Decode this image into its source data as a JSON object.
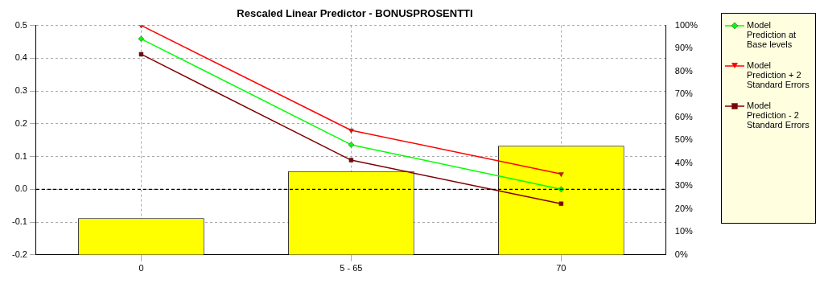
{
  "chart_data": {
    "type": "line",
    "title": "Rescaled Linear Predictor - BONUSPROSENTTI",
    "categories": [
      "0",
      "5 - 65",
      "70"
    ],
    "series": [
      {
        "type": "bar",
        "axis": "y2",
        "color": "#ffff00",
        "values": [
          16,
          36.5,
          47.5
        ]
      },
      {
        "name": "Model Prediction at Base levels",
        "color": "#00ff00",
        "marker": "diamond",
        "values": [
          0.459,
          0.136,
          0.0
        ]
      },
      {
        "name": "Model Prediction + 2 Standard Errors",
        "color": "#ff0000",
        "marker": "triangle",
        "values": [
          0.5,
          0.18,
          0.047
        ]
      },
      {
        "name": "Model Prediction - 2 Standard Errors",
        "color": "#800000",
        "marker": "square",
        "values": [
          0.412,
          0.089,
          -0.044
        ]
      }
    ],
    "ylim": [
      -0.2,
      0.5
    ],
    "yticks": [
      {
        "value": -0.2,
        "label": "-0.2"
      },
      {
        "value": -0.1,
        "label": "-0.1"
      },
      {
        "value": 0,
        "label": "0.0"
      },
      {
        "value": 0.1,
        "label": "0.1"
      },
      {
        "value": 0.2,
        "label": "0.2"
      },
      {
        "value": 0.3,
        "label": "0.3"
      },
      {
        "value": 0.4,
        "label": "0.4"
      },
      {
        "value": 0.5,
        "label": "0.5"
      }
    ],
    "y2lim": [
      0,
      100
    ],
    "y2ticks": [
      {
        "value": 0,
        "label": "0%"
      },
      {
        "value": 10,
        "label": "10%"
      },
      {
        "value": 20,
        "label": "20%"
      },
      {
        "value": 30,
        "label": "30%"
      },
      {
        "value": 40,
        "label": "40%"
      },
      {
        "value": 50,
        "label": "50%"
      },
      {
        "value": 60,
        "label": "60%"
      },
      {
        "value": 70,
        "label": "70%"
      },
      {
        "value": 80,
        "label": "80%"
      },
      {
        "value": 90,
        "label": "90%"
      },
      {
        "value": 100,
        "label": "100%"
      }
    ],
    "grid": true,
    "legend": "right",
    "ref_lines": [
      {
        "axis": "y",
        "value": 0,
        "color": "#000000",
        "line_style": "dashed"
      }
    ]
  }
}
